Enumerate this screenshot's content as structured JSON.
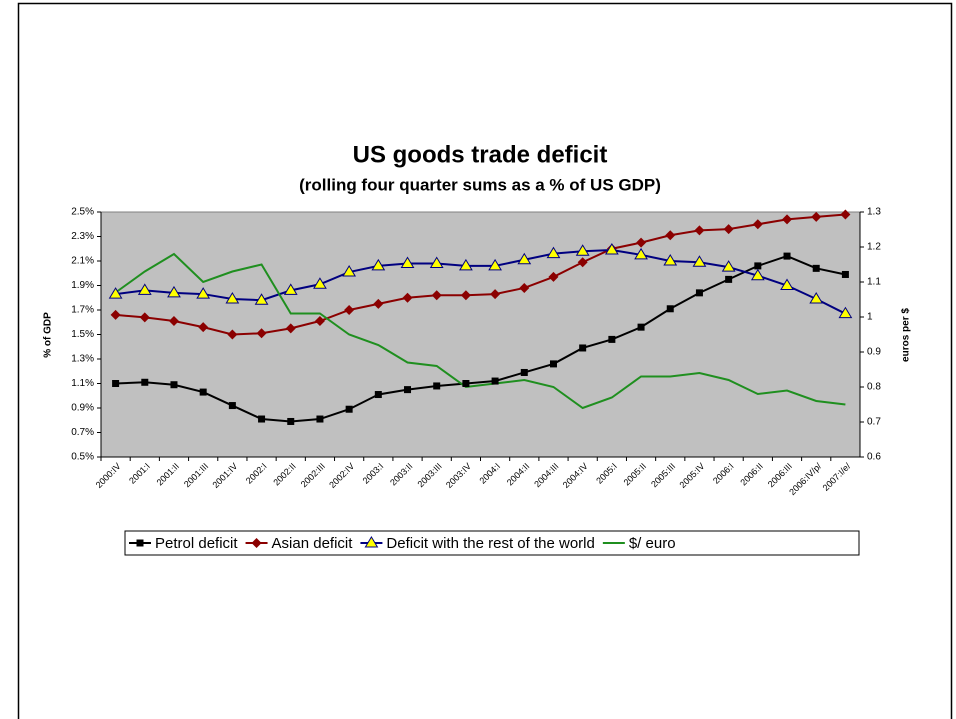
{
  "chart_data": {
    "type": "line",
    "title": "US goods trade deficit",
    "subtitle": "(rolling four quarter sums as a % of US GDP)",
    "y_label": "% of GDP",
    "y2_label": "euros per $",
    "categories": [
      "2000:IV",
      "2001:I",
      "2001:II",
      "2001:III",
      "2001:IV",
      "2002:I",
      "2002:II",
      "2002:III",
      "2002:IV",
      "2003:I",
      "2003:II",
      "2003:III",
      "2003:IV",
      "2004:I",
      "2004:II",
      "2004:III",
      "2004:IV",
      "2005:I",
      "2005:II",
      "2005:III",
      "2005:IV",
      "2006:I",
      "2006:II",
      "2006:III",
      "2006:IV/p/",
      "2007:I/e/"
    ],
    "series": [
      {
        "name": "Petrol deficit",
        "color": "#000000",
        "marker": "square",
        "values": [
          1.1,
          1.11,
          1.09,
          1.03,
          0.92,
          0.81,
          0.79,
          0.81,
          0.89,
          1.01,
          1.05,
          1.08,
          1.1,
          1.12,
          1.19,
          1.26,
          1.39,
          1.46,
          1.56,
          1.71,
          1.84,
          1.95,
          2.06,
          2.14,
          2.04,
          1.99
        ]
      },
      {
        "name": "Asian deficit",
        "color": "#8b0000",
        "marker": "diamond",
        "values": [
          1.66,
          1.64,
          1.61,
          1.56,
          1.5,
          1.51,
          1.55,
          1.61,
          1.7,
          1.75,
          1.8,
          1.82,
          1.82,
          1.83,
          1.88,
          1.97,
          2.09,
          2.2,
          2.25,
          2.31,
          2.35,
          2.36,
          2.4,
          2.44,
          2.46,
          2.48
        ]
      },
      {
        "name": "Deficit with the rest of the world",
        "color": "#000080",
        "marker": "triangle",
        "values": [
          1.83,
          1.86,
          1.84,
          1.83,
          1.79,
          1.78,
          1.86,
          1.91,
          2.01,
          2.06,
          2.08,
          2.08,
          2.06,
          2.06,
          2.11,
          2.16,
          2.18,
          2.19,
          2.15,
          2.1,
          2.09,
          2.05,
          1.98,
          1.9,
          1.79,
          1.67
        ]
      },
      {
        "name": "$/ euro",
        "color": "#1f8f1f",
        "axis": "y2",
        "values": [
          1.07,
          1.13,
          1.18,
          1.1,
          1.13,
          1.15,
          1.01,
          1.01,
          0.95,
          0.92,
          0.87,
          0.86,
          0.8,
          0.81,
          0.82,
          0.8,
          0.74,
          0.77,
          0.83,
          0.83,
          0.84,
          0.82,
          0.78,
          0.79,
          0.76,
          0.75
        ]
      }
    ],
    "ylim": [
      0.5,
      2.5
    ],
    "yticks": [
      {
        "value": 0.5,
        "label": "0.5%"
      },
      {
        "value": 0.7,
        "label": "0.7%"
      },
      {
        "value": 0.9,
        "label": "0.9%"
      },
      {
        "value": 1.1,
        "label": "1.1%"
      },
      {
        "value": 1.3,
        "label": "1.3%"
      },
      {
        "value": 1.5,
        "label": "1.5%"
      },
      {
        "value": 1.7,
        "label": "1.7%"
      },
      {
        "value": 1.9,
        "label": "1.9%"
      },
      {
        "value": 2.1,
        "label": "2.1%"
      },
      {
        "value": 2.3,
        "label": "2.3%"
      },
      {
        "value": 2.5,
        "label": "2.5%"
      }
    ],
    "y2lim": [
      0.6,
      1.3
    ],
    "y2ticks": [
      0.6,
      0.7,
      0.8,
      0.9,
      1,
      1.1,
      1.2,
      1.3
    ],
    "grid": false,
    "legend": "bottom",
    "plot_background": "#c0c0c0"
  }
}
